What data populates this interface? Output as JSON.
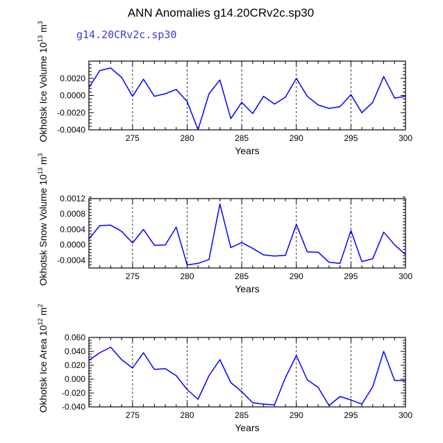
{
  "figure": {
    "title": "ANN Anomalies g14.20CRv2c.sp30",
    "subtitle": "g14.20CRv2c.sp30",
    "series_color": "#0000ff"
  },
  "chart_data": [
    {
      "type": "line",
      "title": "",
      "ylabel": {
        "text": "Okhotsk Ice Volume 10",
        "exp": "13",
        "unit": " m",
        "unit_exp": "3"
      },
      "xlabel": "Years",
      "xlim": [
        271,
        300
      ],
      "ylim": [
        -0.004,
        0.004
      ],
      "x_ticks": [
        275,
        280,
        285,
        290,
        295,
        300
      ],
      "y_ticks": [
        -0.004,
        -0.002,
        0.0,
        0.002
      ],
      "y_tick_labels": [
        "-0.0040",
        "-0.0020",
        "0.0000",
        "0.0020"
      ],
      "vlines": [
        275,
        280,
        285,
        290,
        295
      ],
      "x": [
        271,
        272,
        273,
        274,
        275,
        276,
        277,
        278,
        279,
        280,
        281,
        282,
        283,
        284,
        285,
        286,
        287,
        288,
        289,
        290,
        291,
        292,
        293,
        294,
        295,
        296,
        297,
        298,
        299,
        300
      ],
      "values": [
        0.0009,
        0.0029,
        0.0032,
        0.0021,
        -0.0001,
        0.0019,
        -0.0001,
        0.0002,
        0.0007,
        -0.0007,
        -0.004,
        0.0002,
        0.0018,
        -0.0027,
        -0.0008,
        -0.0021,
        -0.0001,
        -0.001,
        -0.0002,
        0.002,
        -0.0001,
        -0.0011,
        -0.0015,
        -0.0013,
        0.0001,
        -0.002,
        -0.0008,
        0.0022,
        -0.0003,
        -0.0001
      ]
    },
    {
      "type": "line",
      "title": "",
      "ylabel": {
        "text": "Okhotsk Snow Volume 10",
        "exp": "13",
        "unit": " m",
        "unit_exp": "3"
      },
      "xlabel": "Years",
      "xlim": [
        271,
        300
      ],
      "ylim": [
        -0.0006,
        0.0012
      ],
      "x_ticks": [
        275,
        280,
        285,
        290,
        295,
        300
      ],
      "y_ticks": [
        -0.0004,
        0.0,
        0.0004,
        0.0008,
        0.0012
      ],
      "y_tick_labels": [
        "-0.0004",
        "0.0000",
        "0.0004",
        "0.0008",
        "0.0012"
      ],
      "vlines": [
        275,
        280,
        285,
        290,
        295
      ],
      "x": [
        271,
        272,
        273,
        274,
        275,
        276,
        277,
        278,
        279,
        280,
        281,
        282,
        283,
        284,
        285,
        286,
        287,
        288,
        289,
        290,
        291,
        292,
        293,
        294,
        295,
        296,
        297,
        298,
        299,
        300
      ],
      "values": [
        0.00015,
        0.0005,
        0.00051,
        0.00035,
        5e-05,
        0.0004,
        -1e-05,
        0.0,
        0.00046,
        -0.00052,
        -0.00048,
        -0.00038,
        0.00106,
        -7e-05,
        6e-05,
        -9e-05,
        -0.00026,
        -0.00029,
        -0.00027,
        0.00053,
        -0.00018,
        -0.00019,
        -0.00045,
        -0.00048,
        0.00037,
        -0.00043,
        -0.00036,
        0.00033,
        0.0,
        -0.00025
      ]
    },
    {
      "type": "line",
      "title": "",
      "ylabel": {
        "text": "Okhotsk Ice Area 10",
        "exp": "12",
        "unit": " m",
        "unit_exp": "2"
      },
      "xlabel": "Years",
      "xlim": [
        271,
        300
      ],
      "ylim": [
        -0.04,
        0.06
      ],
      "x_ticks": [
        275,
        280,
        285,
        290,
        295,
        300
      ],
      "y_ticks": [
        -0.04,
        -0.02,
        0.0,
        0.02,
        0.04,
        0.06
      ],
      "y_tick_labels": [
        "-0.040",
        "-0.020",
        "0.000",
        "0.020",
        "0.040",
        "0.060"
      ],
      "vlines": [
        275,
        280,
        285,
        290,
        295
      ],
      "x": [
        271,
        272,
        273,
        274,
        275,
        276,
        277,
        278,
        279,
        280,
        281,
        282,
        283,
        284,
        285,
        286,
        287,
        288,
        289,
        290,
        291,
        292,
        293,
        294,
        295,
        296,
        297,
        298,
        299,
        300
      ],
      "values": [
        0.027,
        0.038,
        0.046,
        0.028,
        0.016,
        0.038,
        0.014,
        0.015,
        0.005,
        -0.015,
        -0.029,
        0.005,
        0.028,
        -0.005,
        -0.018,
        -0.034,
        -0.036,
        -0.037,
        0.002,
        0.034,
        -0.001,
        -0.012,
        -0.038,
        -0.025,
        -0.03,
        -0.036,
        -0.011,
        0.04,
        -0.002,
        -0.002
      ]
    }
  ]
}
